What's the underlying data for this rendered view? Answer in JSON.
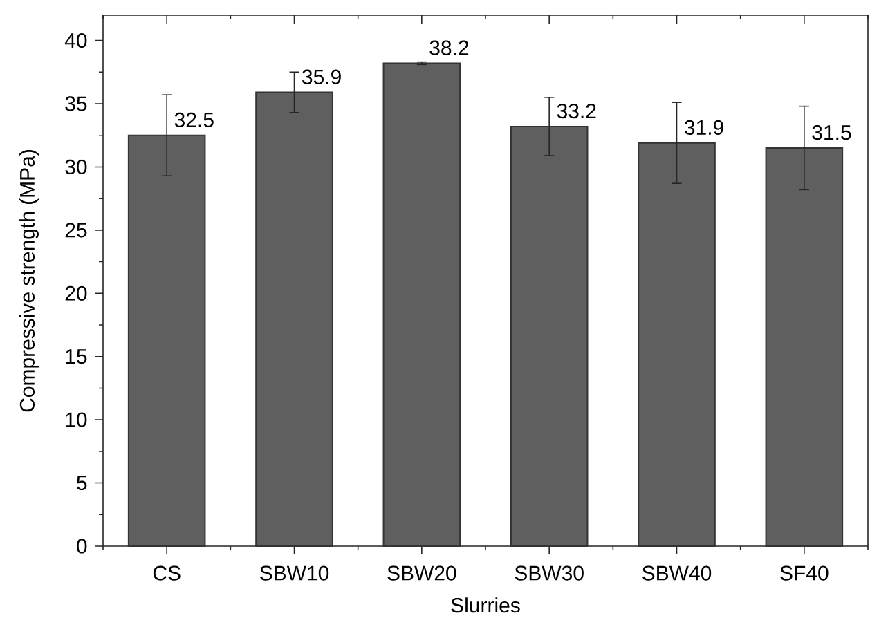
{
  "chart_data": {
    "type": "bar",
    "xlabel": "Slurries",
    "ylabel": "Compressive strength (MPa)",
    "categories": [
      "CS",
      "SBW10",
      "SBW20",
      "SBW30",
      "SBW40",
      "SF40"
    ],
    "values": [
      32.5,
      35.9,
      38.2,
      33.2,
      31.9,
      31.5
    ],
    "errors": [
      3.2,
      1.6,
      0.1,
      2.3,
      3.2,
      3.3
    ],
    "color": "#5f5f5f",
    "ylim": [
      0,
      42
    ],
    "yticks": [
      0,
      {
        "value": 2.5,
        "label": null
      },
      5,
      {
        "value": 7.5,
        "label": null
      },
      10,
      {
        "value": 12.5,
        "label": null
      },
      15,
      {
        "value": 17.5,
        "label": null
      },
      20,
      {
        "value": 22.5,
        "label": null
      },
      25,
      {
        "value": 27.5,
        "label": null
      },
      30,
      {
        "value": 32.5,
        "label": null
      },
      35,
      {
        "value": 37.5,
        "label": null
      },
      40
    ],
    "data_labels": true
  }
}
